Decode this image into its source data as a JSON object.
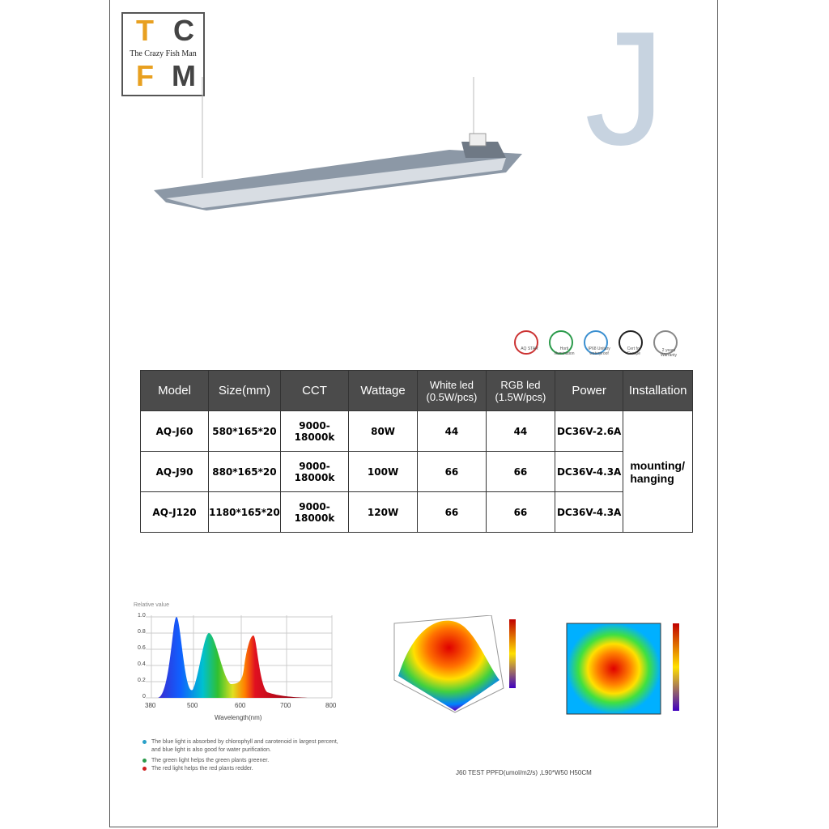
{
  "logo": {
    "letters": [
      "T",
      "C",
      "F",
      "M"
    ],
    "tagline": "The Crazy Fish Man"
  },
  "product_letter": "J",
  "certifications": [
    "AQ STAR",
    "Horti illumination",
    "IP68 Unitary waterproof",
    "Cert for Europe",
    "2 years Warranty"
  ],
  "table": {
    "headers": [
      "Model",
      "Size(mm)",
      "CCT",
      "Wattage",
      "White led (0.5W/pcs)",
      "RGB led (1.5W/pcs)",
      "Power",
      "Installation"
    ],
    "rows": [
      [
        "AQ-J60",
        "580*165*20",
        "9000-18000k",
        "80W",
        "44",
        "44",
        "DC36V-2.6A"
      ],
      [
        "AQ-J90",
        "880*165*20",
        "9000-18000k",
        "100W",
        "66",
        "66",
        "DC36V-4.3A"
      ],
      [
        "AQ-J120",
        "1180*165*20",
        "9000-18000k",
        "120W",
        "66",
        "66",
        "DC36V-4.3A"
      ]
    ],
    "installation": "mounting/ hanging"
  },
  "spectrum": {
    "y_label": "Relative value",
    "x_label": "Wavelength(nm)",
    "yticks": [
      "1.0",
      "0.8",
      "0.6",
      "0.4",
      "0.2",
      "0"
    ],
    "xticks": [
      "380",
      "500",
      "600",
      "700",
      "800"
    ]
  },
  "notes": [
    "The blue light is absorbed by chlorophyll and carotenoid in largest percent, and blue light is also good for water purification.",
    "The green light helps the green plants greener.",
    "The red light helps the red plants redder."
  ],
  "ppfd_caption": "J60 TEST PPFD(umol/m2/s) ,L90*W50 H50CM"
}
